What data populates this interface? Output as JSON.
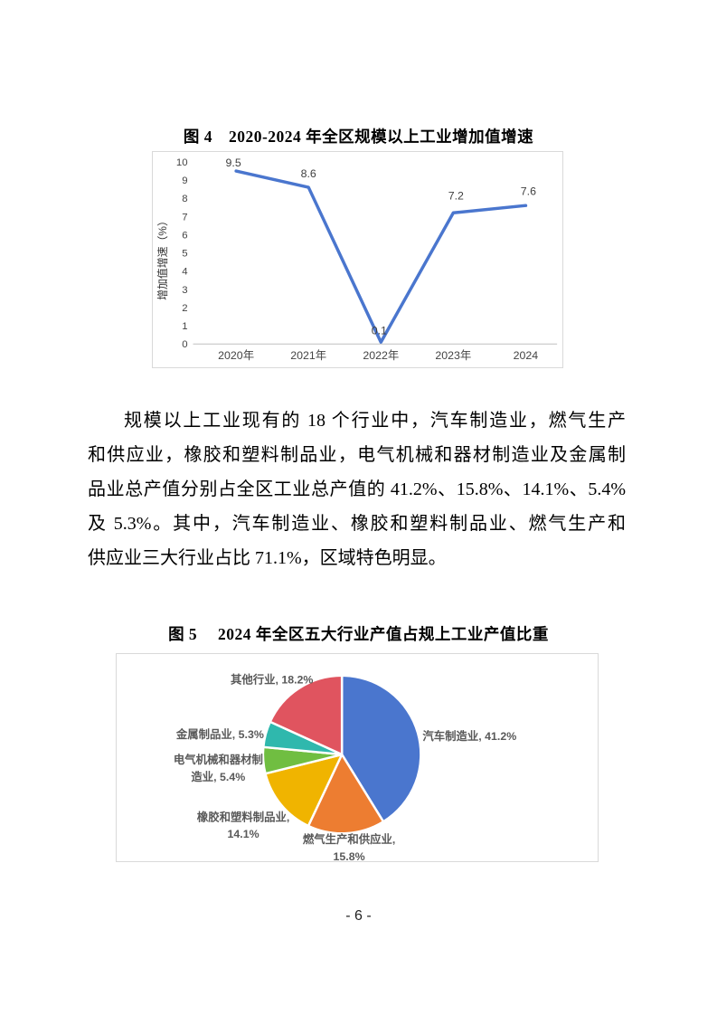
{
  "page": {
    "number_label": "- 6 -"
  },
  "figure4": {
    "title": "图 4　2020-2024 年全区规模以上工业增加值增速"
  },
  "paragraph": {
    "lines": [
      "规模以上工业现有的 18 个行业中，汽车制造业，燃气生产",
      "和供应业，橡胶和塑料制品业，电气机械和器材制造业及金属制",
      "品业总产值分别占全区工业总产值的 41.2%、15.8%、14.1%、5.4%",
      "及 5.3%。其中，汽车制造业、橡胶和塑料制品业、燃气生产和",
      "供应业三大行业占比 71.1%，区域特色明显。"
    ]
  },
  "figure5": {
    "title": "图 5　 2024 年全区五大行业产值占规上工业产值比重"
  },
  "chart_data": [
    {
      "type": "line",
      "title": "图 4 2020-2024 年全区规模以上工业增加值增速",
      "categories": [
        "2020年",
        "2021年",
        "2022年",
        "2023年",
        "2024"
      ],
      "values": [
        9.5,
        8.6,
        0.1,
        7.2,
        7.6
      ],
      "data_labels": [
        "9.5",
        "8.6",
        "0.1",
        "7.2",
        "7.6"
      ],
      "xlabel": "",
      "ylabel": "增加值增速（%）",
      "ylim": [
        0,
        10
      ],
      "ytick_step": 1,
      "grid": false,
      "legend": "none",
      "line_color": "#4a76ce",
      "axis_color": "#bfbfbf"
    },
    {
      "type": "pie",
      "title": "图 5 2024 年全区五大行业产值占规上工业产值比重",
      "start_angle_deg": 0,
      "direction": "clockwise",
      "slice_border_color": "#ffffff",
      "slices": [
        {
          "label": "汽车制造业",
          "value": 41.2,
          "color": "#4a76ce",
          "label_lines": [
            "汽车制造业, 41.2%"
          ]
        },
        {
          "label": "燃气生产和供应业",
          "value": 15.8,
          "color": "#ed7d31",
          "label_lines": [
            "燃气生产和供应业,",
            "15.8%"
          ]
        },
        {
          "label": "橡胶和塑料制品业",
          "value": 14.1,
          "color": "#f0b400",
          "label_lines": [
            "橡胶和塑料制品业,",
            "14.1%"
          ]
        },
        {
          "label": "电气机械和器材制造业",
          "value": 5.4,
          "color": "#70be41",
          "label_lines": [
            "电气机械和器材制",
            "造业, 5.4%"
          ]
        },
        {
          "label": "金属制品业",
          "value": 5.3,
          "color": "#2fb8ad",
          "label_lines": [
            "金属制品业, 5.3%"
          ]
        },
        {
          "label": "其他行业",
          "value": 18.2,
          "color": "#e0545f",
          "label_lines": [
            "其他行业, 18.2%"
          ]
        }
      ]
    }
  ]
}
